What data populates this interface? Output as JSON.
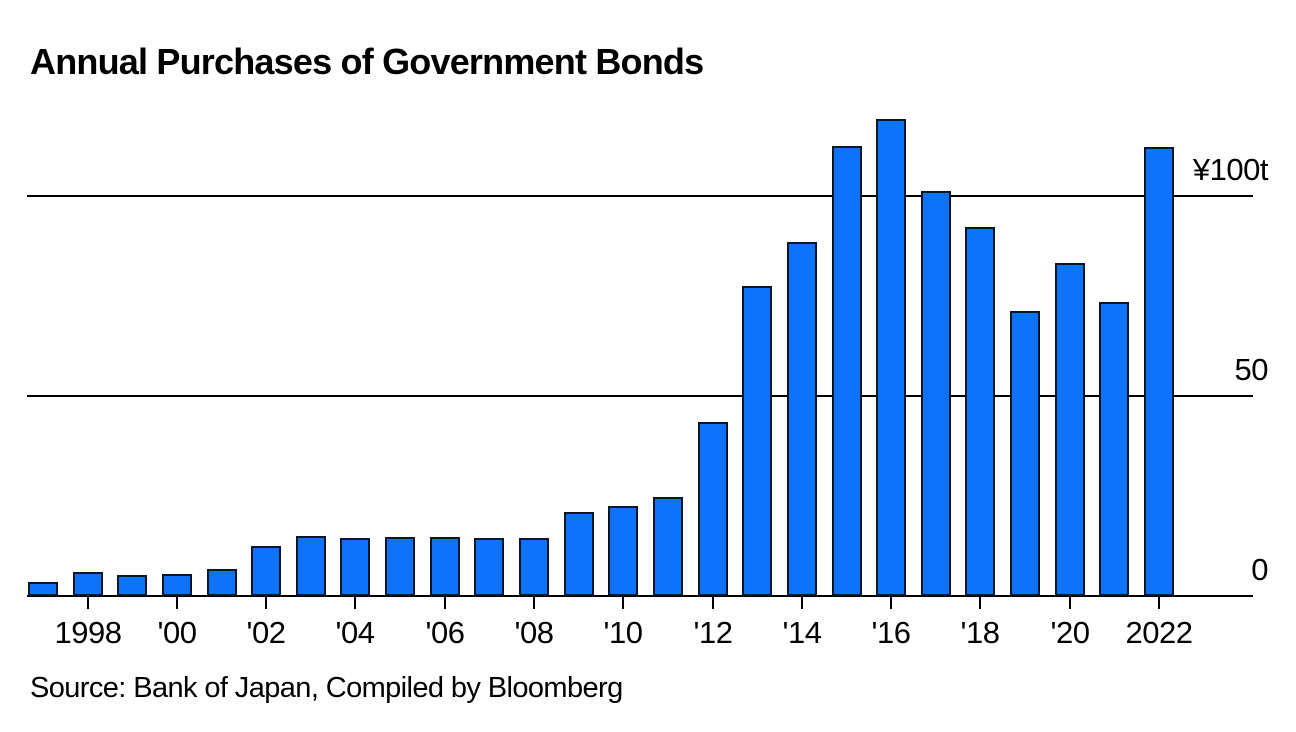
{
  "page": {
    "background": "#ffffff"
  },
  "chart_data": {
    "type": "bar",
    "title": "Annual Purchases of Government Bonds",
    "source": "Source: Bank of Japan, Compiled by Bloomberg",
    "unit": "trillion yen",
    "categories": [
      1997,
      1998,
      1999,
      2000,
      2001,
      2002,
      2003,
      2004,
      2005,
      2006,
      2007,
      2008,
      2009,
      2010,
      2011,
      2012,
      2013,
      2014,
      2015,
      2016,
      2017,
      2018,
      2019,
      2020,
      2021,
      2022
    ],
    "values": [
      3.5,
      6.0,
      5.3,
      5.5,
      6.8,
      12.5,
      15.0,
      14.5,
      14.8,
      14.8,
      14.5,
      14.5,
      21.0,
      22.5,
      24.8,
      43.5,
      77.5,
      88.5,
      112.5,
      119.3,
      101.3,
      92.3,
      71.3,
      83.3,
      73.5,
      112.3
    ],
    "ylim": [
      0,
      122
    ],
    "yticks": [
      {
        "value": 0,
        "label": "0"
      },
      {
        "value": 50,
        "label": "50"
      },
      {
        "value": 100,
        "label": "¥100t"
      }
    ],
    "xticks": [
      {
        "year": 1998,
        "label": "1998"
      },
      {
        "year": 2000,
        "label": "'00"
      },
      {
        "year": 2002,
        "label": "'02"
      },
      {
        "year": 2004,
        "label": "'04"
      },
      {
        "year": 2006,
        "label": "'06"
      },
      {
        "year": 2008,
        "label": "'08"
      },
      {
        "year": 2010,
        "label": "'10"
      },
      {
        "year": 2012,
        "label": "'12"
      },
      {
        "year": 2014,
        "label": "'14"
      },
      {
        "year": 2016,
        "label": "'16"
      },
      {
        "year": 2018,
        "label": "'18"
      },
      {
        "year": 2020,
        "label": "'20"
      },
      {
        "year": 2022,
        "label": "2022"
      }
    ],
    "grid": "horizontal",
    "legend": "none",
    "colors": {
      "bar_fill": "#0c73fa",
      "bar_outline": "#0a1626",
      "axis": "#000000",
      "text": "#000000"
    }
  }
}
